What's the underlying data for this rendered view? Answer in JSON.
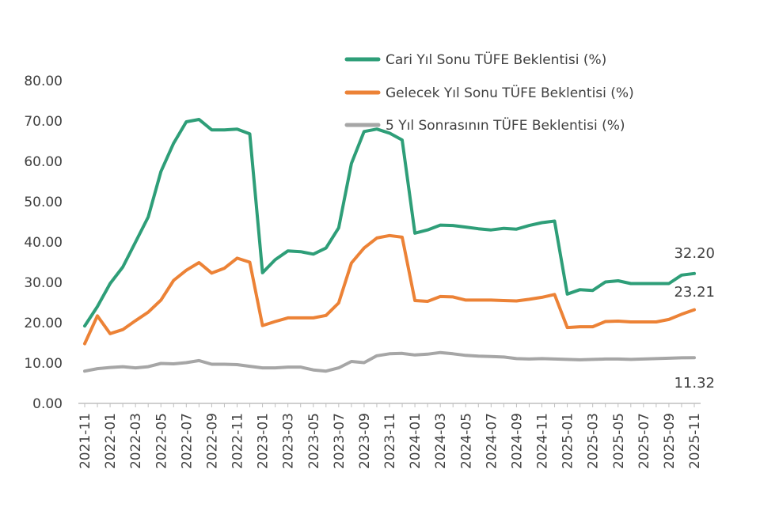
{
  "chart_data": {
    "type": "line",
    "title": "",
    "xlabel": "",
    "ylabel": "",
    "ylim": [
      0,
      80
    ],
    "yticks": [
      "0.00",
      "10.00",
      "20.00",
      "30.00",
      "40.00",
      "50.00",
      "60.00",
      "70.00",
      "80.00"
    ],
    "x": [
      "2021-11",
      "2021-12",
      "2022-01",
      "2022-02",
      "2022-03",
      "2022-04",
      "2022-05",
      "2022-06",
      "2022-07",
      "2022-08",
      "2022-09",
      "2022-10",
      "2022-11",
      "2022-12",
      "2023-01",
      "2023-02",
      "2023-03",
      "2023-04",
      "2023-05",
      "2023-06",
      "2023-07",
      "2023-08",
      "2023-09",
      "2023-10",
      "2023-11",
      "2023-12",
      "2024-01",
      "2024-02",
      "2024-03",
      "2024-04",
      "2024-05",
      "2024-06",
      "2024-07",
      "2024-08",
      "2024-09",
      "2024-10",
      "2024-11",
      "2024-12",
      "2025-01",
      "2025-02",
      "2025-03",
      "2025-04",
      "2025-05",
      "2025-06",
      "2025-07",
      "2025-08",
      "2025-09",
      "2025-10",
      "2025-11"
    ],
    "xtick_labels": [
      "2021-11",
      "2022-01",
      "2022-03",
      "2022-05",
      "2022-07",
      "2022-09",
      "2022-11",
      "2023-01",
      "2023-03",
      "2023-05",
      "2023-07",
      "2023-09",
      "2023-11",
      "2024-01",
      "2024-03",
      "2024-05",
      "2024-07",
      "2024-09",
      "2024-11",
      "2025-01",
      "2025-03",
      "2025-05",
      "2025-07",
      "2025-09",
      "2025-11"
    ],
    "grid": false,
    "legend_position": "top-right",
    "series": [
      {
        "name": "Cari Yıl Sonu TÜFE Beklentisi (%)",
        "color": "#2e9e78",
        "end_label": "32.20",
        "values": [
          19.2,
          24.0,
          29.7,
          33.8,
          40.0,
          46.2,
          57.5,
          64.5,
          69.8,
          70.4,
          67.8,
          67.8,
          68.0,
          66.8,
          32.4,
          35.6,
          37.8,
          37.6,
          37.0,
          38.5,
          43.5,
          59.5,
          67.4,
          68.0,
          67.0,
          65.3,
          42.2,
          43.0,
          44.2,
          44.1,
          43.7,
          43.3,
          43.0,
          43.4,
          43.2,
          44.1,
          44.8,
          45.2,
          27.1,
          28.2,
          28.0,
          30.1,
          30.4,
          29.7,
          29.7,
          29.7,
          29.7,
          31.8,
          32.2
        ]
      },
      {
        "name": "Gelecek Yıl Sonu TÜFE Beklentisi (%)",
        "color": "#ec8236",
        "end_label": "23.21",
        "values": [
          14.8,
          21.7,
          17.3,
          18.3,
          20.5,
          22.6,
          25.6,
          30.5,
          33.0,
          34.9,
          32.3,
          33.5,
          36.0,
          35.0,
          19.3,
          20.3,
          21.2,
          21.2,
          21.2,
          21.8,
          24.9,
          34.8,
          38.5,
          41.0,
          41.6,
          41.2,
          25.5,
          25.3,
          26.5,
          26.4,
          25.6,
          25.6,
          25.6,
          25.5,
          25.4,
          25.8,
          26.3,
          27.0,
          18.8,
          19.0,
          19.0,
          20.3,
          20.4,
          20.2,
          20.2,
          20.2,
          20.8,
          22.1,
          23.21
        ]
      },
      {
        "name": "5 Yıl Sonrasının TÜFE Beklentisi (%)",
        "color": "#a6a6a6",
        "end_label": "11.32",
        "values": [
          8.0,
          8.6,
          8.9,
          9.1,
          8.8,
          9.1,
          9.9,
          9.8,
          10.1,
          10.6,
          9.7,
          9.7,
          9.6,
          9.2,
          8.8,
          8.8,
          9.0,
          9.0,
          8.3,
          8.0,
          8.8,
          10.4,
          10.1,
          11.8,
          12.3,
          12.4,
          12.0,
          12.2,
          12.6,
          12.3,
          11.9,
          11.7,
          11.6,
          11.5,
          11.1,
          11.0,
          11.1,
          11.0,
          10.9,
          10.8,
          10.9,
          11.0,
          11.0,
          10.9,
          11.0,
          11.1,
          11.2,
          11.3,
          11.32
        ]
      }
    ]
  }
}
